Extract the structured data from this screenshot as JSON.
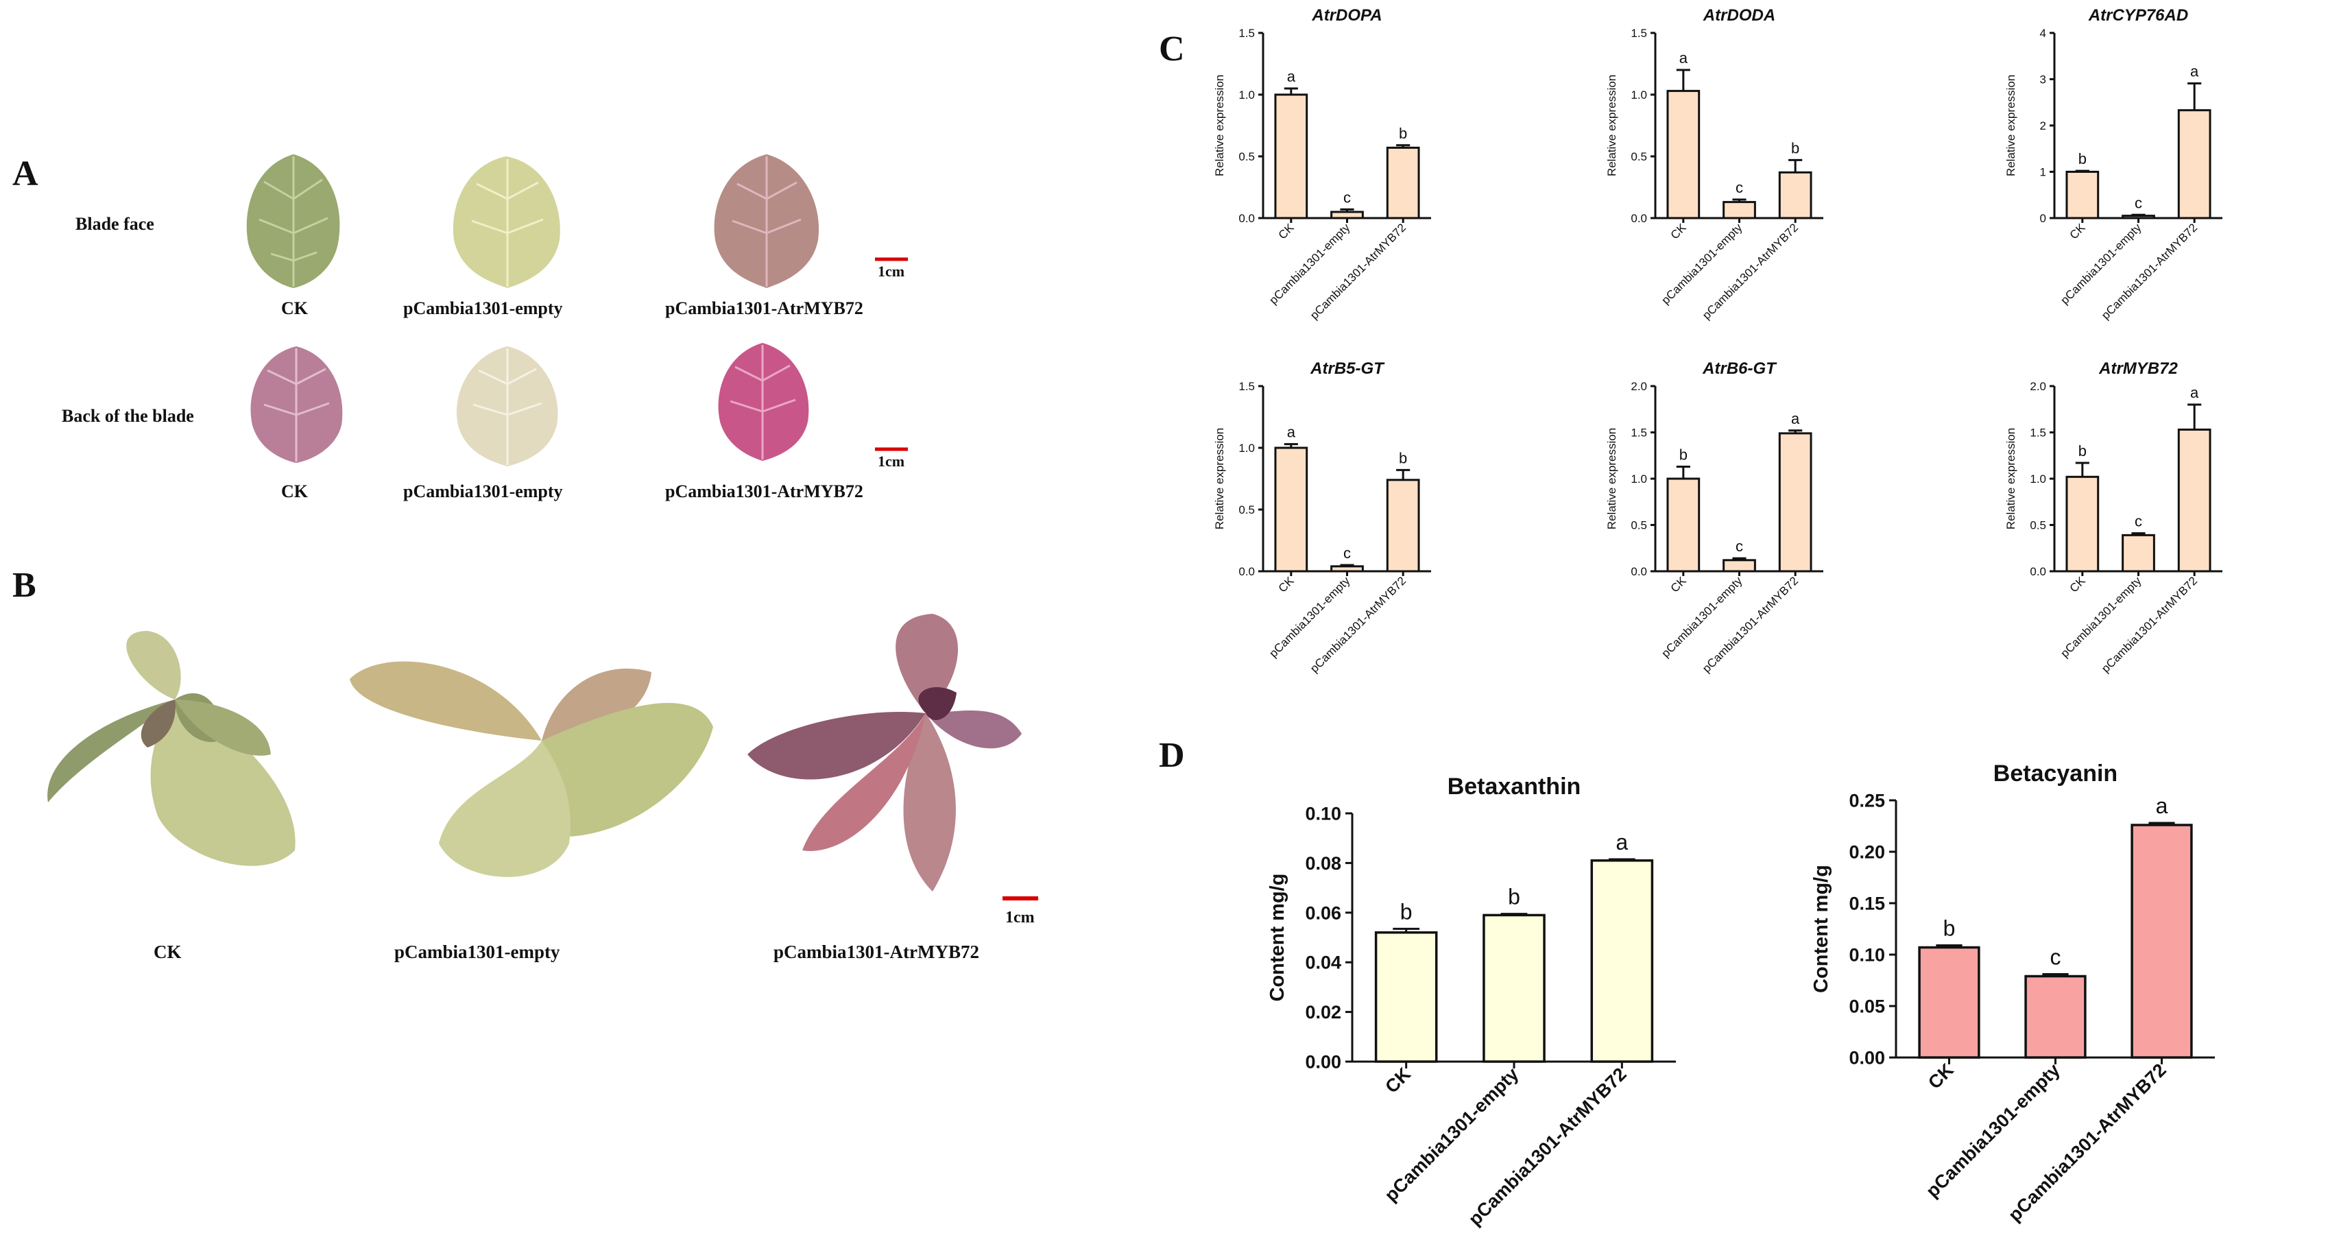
{
  "colors": {
    "qpcr_bar": "#fde0c5",
    "betaxanthin_bar": "#ffffde",
    "betacyanin_bar": "#f8a2a2",
    "scale_bar": "#d90000",
    "leaf_green": "#9caf73",
    "leaf_pale": "#d8d8a4",
    "leaf_purple": "#b0697e",
    "leaf_magenta": "#c94f86"
  },
  "panel_a": {
    "letter": "A",
    "row1_label": "Blade face",
    "row2_label": "Back of the blade",
    "row1_names": [
      "CK",
      "pCambia1301-empty",
      "pCambia1301-AtrMYB72"
    ],
    "row2_names": [
      "CK",
      "pCambia1301-empty",
      "pCambia1301-AtrMYB72"
    ],
    "scale_row1": "1cm",
    "scale_row2": "1cm"
  },
  "panel_b": {
    "letter": "B",
    "names": [
      "CK",
      "pCambia1301-empty",
      "pCambia1301-AtrMYB72"
    ],
    "scale": "1cm"
  },
  "panel_c": {
    "letter": "C"
  },
  "panel_d": {
    "letter": "D"
  },
  "chart_data": [
    {
      "type": "bar",
      "panel": "C",
      "title": "AtrDOPA",
      "title_italic": true,
      "ylabel": "Relative expression",
      "xlabel": "",
      "categories": [
        "CK",
        "pCambia1301-empty",
        "pCambia1301-AtrMYB72"
      ],
      "values": [
        1.0,
        0.05,
        0.57
      ],
      "errors": [
        0.05,
        0.02,
        0.02
      ],
      "letters": [
        "a",
        "c",
        "b"
      ],
      "ylim": [
        0,
        1.5
      ],
      "yticks": [
        "0.0",
        "0.5",
        "1.0",
        "1.5"
      ]
    },
    {
      "type": "bar",
      "panel": "C",
      "title": "AtrDODA",
      "title_italic": true,
      "ylabel": "Relative expression",
      "xlabel": "",
      "categories": [
        "CK",
        "pCambia1301-empty",
        "pCambia1301-AtrMYB72"
      ],
      "values": [
        1.03,
        0.13,
        0.37
      ],
      "errors": [
        0.17,
        0.02,
        0.1
      ],
      "letters": [
        "a",
        "c",
        "b"
      ],
      "ylim": [
        0,
        1.5
      ],
      "yticks": [
        "0.0",
        "0.5",
        "1.0",
        "1.5"
      ]
    },
    {
      "type": "bar",
      "panel": "C",
      "title": "AtrCYP76AD",
      "title_italic": true,
      "ylabel": "Relative expression",
      "xlabel": "",
      "categories": [
        "CK",
        "pCambia1301-empty",
        "pCambia1301-AtrMYB72"
      ],
      "values": [
        1.0,
        0.05,
        2.33
      ],
      "errors": [
        0.02,
        0.02,
        0.58
      ],
      "letters": [
        "b",
        "c",
        "a"
      ],
      "ylim": [
        0,
        4
      ],
      "yticks": [
        "0",
        "1",
        "2",
        "3",
        "4"
      ]
    },
    {
      "type": "bar",
      "panel": "C",
      "title": "AtrB5-GT",
      "title_italic": true,
      "ylabel": "Relative expression",
      "xlabel": "",
      "categories": [
        "CK",
        "pCambia1301-empty",
        "pCambia1301-AtrMYB72"
      ],
      "values": [
        1.0,
        0.04,
        0.74
      ],
      "errors": [
        0.03,
        0.01,
        0.08
      ],
      "letters": [
        "a",
        "c",
        "b"
      ],
      "ylim": [
        0,
        1.5
      ],
      "yticks": [
        "0.0",
        "0.5",
        "1.0",
        "1.5"
      ]
    },
    {
      "type": "bar",
      "panel": "C",
      "title": "AtrB6-GT",
      "title_italic": true,
      "ylabel": "Relative expression",
      "xlabel": "",
      "categories": [
        "CK",
        "pCambia1301-empty",
        "pCambia1301-AtrMYB72"
      ],
      "values": [
        1.0,
        0.12,
        1.49
      ],
      "errors": [
        0.13,
        0.02,
        0.03
      ],
      "letters": [
        "b",
        "c",
        "a"
      ],
      "ylim": [
        0,
        2.0
      ],
      "yticks": [
        "0.0",
        "0.5",
        "1.0",
        "1.5",
        "2.0"
      ]
    },
    {
      "type": "bar",
      "panel": "C",
      "title": "AtrMYB72",
      "title_italic": true,
      "ylabel": "Relative expression",
      "xlabel": "",
      "categories": [
        "CK",
        "pCambia1301-empty",
        "pCambia1301-AtrMYB72"
      ],
      "values": [
        1.02,
        0.39,
        1.53
      ],
      "errors": [
        0.15,
        0.02,
        0.27
      ],
      "letters": [
        "b",
        "c",
        "a"
      ],
      "ylim": [
        0,
        2.0
      ],
      "yticks": [
        "0.0",
        "0.5",
        "1.0",
        "1.5",
        "2.0"
      ]
    },
    {
      "type": "bar",
      "panel": "D",
      "title": "Betaxanthin",
      "title_italic": false,
      "ylabel": "Content mg/g",
      "xlabel": "",
      "categories": [
        "CK",
        "pCambia1301-empty",
        "pCambia1301-AtrMYB72"
      ],
      "values": [
        0.052,
        0.059,
        0.081
      ],
      "errors": [
        0.0015,
        0.0005,
        0.0005
      ],
      "letters": [
        "b",
        "b",
        "a"
      ],
      "ylim": [
        0,
        0.1
      ],
      "yticks": [
        "0.00",
        "0.02",
        "0.04",
        "0.06",
        "0.08",
        "0.10"
      ]
    },
    {
      "type": "bar",
      "panel": "D",
      "title": "Betacyanin",
      "title_italic": false,
      "ylabel": "Content mg/g",
      "xlabel": "",
      "categories": [
        "CK",
        "pCambia1301-empty",
        "pCambia1301-AtrMYB72"
      ],
      "values": [
        0.107,
        0.079,
        0.226
      ],
      "errors": [
        0.002,
        0.002,
        0.002
      ],
      "letters": [
        "b",
        "c",
        "a"
      ],
      "ylim": [
        0,
        0.25
      ],
      "yticks": [
        "0.00",
        "0.05",
        "0.10",
        "0.15",
        "0.20",
        "0.25"
      ]
    }
  ]
}
